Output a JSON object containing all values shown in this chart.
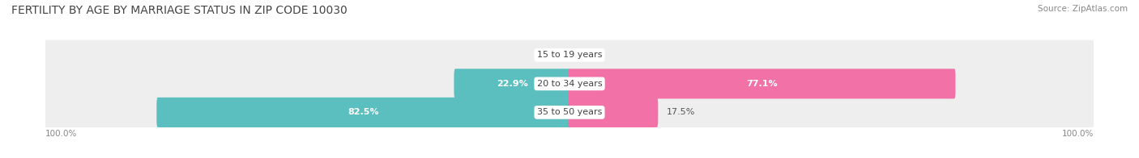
{
  "title": "FERTILITY BY AGE BY MARRIAGE STATUS IN ZIP CODE 10030",
  "source": "Source: ZipAtlas.com",
  "categories": [
    "15 to 19 years",
    "20 to 34 years",
    "35 to 50 years"
  ],
  "married_pct": [
    0.0,
    22.9,
    82.5
  ],
  "unmarried_pct": [
    0.0,
    77.1,
    17.5
  ],
  "married_color": "#5bbfbf",
  "unmarried_color": "#f272a8",
  "bar_bg_color": "#eeeeee",
  "bar_height": 0.55,
  "title_fontsize": 10,
  "label_fontsize": 8,
  "category_fontsize": 8,
  "bg_color": "#ffffff",
  "axis_label_left": "100.0%",
  "axis_label_right": "100.0%",
  "xlim": 105
}
